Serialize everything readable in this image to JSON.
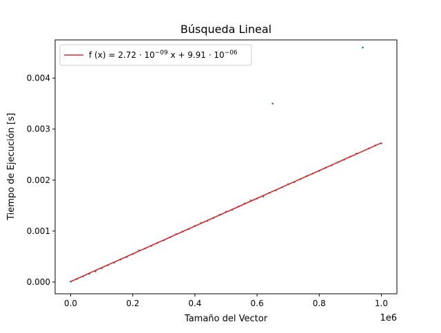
{
  "chart_data": {
    "type": "scatter",
    "title": "Búsqueda Lineal",
    "xlabel": "Tamaño del Vector",
    "ylabel": "Tiempo de Ejecución [s]",
    "x_offset_label": "1e6",
    "xlim": [
      -50000,
      1050000
    ],
    "ylim": [
      -0.00023,
      0.00475
    ],
    "x_ticks": [
      0,
      200000,
      400000,
      600000,
      800000,
      1000000
    ],
    "x_tick_labels": [
      "0.0",
      "0.2",
      "0.4",
      "0.6",
      "0.8",
      "1.0"
    ],
    "y_ticks": [
      0,
      0.001,
      0.002,
      0.003,
      0.004
    ],
    "y_tick_labels": [
      "0.000",
      "0.001",
      "0.002",
      "0.003",
      "0.004"
    ],
    "grid": false,
    "legend": {
      "placement": "top-left",
      "entries": [
        {
          "label": "f (x) = 2.72 · 10^−09 x + 9.91 · 10^−06",
          "color": "#d62728"
        }
      ]
    },
    "fit": {
      "slope": 2.72e-09,
      "intercept": 9.91e-06,
      "x_range": [
        0,
        1000000
      ],
      "color": "#d62728"
    },
    "series": [
      {
        "color": "#1f77b4",
        "x": [
          0,
          20000,
          40000,
          60000,
          80000,
          100000,
          120000,
          140000,
          160000,
          180000,
          200000,
          220000,
          240000,
          260000,
          280000,
          300000,
          320000,
          340000,
          360000,
          380000,
          400000,
          420000,
          440000,
          460000,
          480000,
          500000,
          520000,
          540000,
          560000,
          580000,
          600000,
          620000,
          640000,
          650000,
          660000,
          680000,
          700000,
          720000,
          740000,
          760000,
          780000,
          800000,
          820000,
          840000,
          860000,
          880000,
          900000,
          920000,
          940000,
          960000,
          980000,
          1000000
        ],
        "y": [
          1e-05,
          6e-05,
          0.00011,
          0.00016,
          0.00021,
          0.00027,
          0.00033,
          0.00038,
          0.00044,
          0.00049,
          0.00055,
          0.00062,
          0.00066,
          0.00071,
          0.00077,
          0.00082,
          0.00088,
          0.00094,
          0.00099,
          0.00104,
          0.0011,
          0.00116,
          0.0012,
          0.00126,
          0.00132,
          0.00138,
          0.00142,
          0.00148,
          0.00154,
          0.0016,
          0.00164,
          0.00168,
          0.00175,
          0.0035,
          0.0018,
          0.00186,
          0.00192,
          0.00196,
          0.00202,
          0.00208,
          0.00213,
          0.00218,
          0.00224,
          0.00229,
          0.00235,
          0.0024,
          0.00246,
          0.00252,
          0.0046,
          0.00262,
          0.00268,
          0.00272
        ]
      }
    ]
  }
}
